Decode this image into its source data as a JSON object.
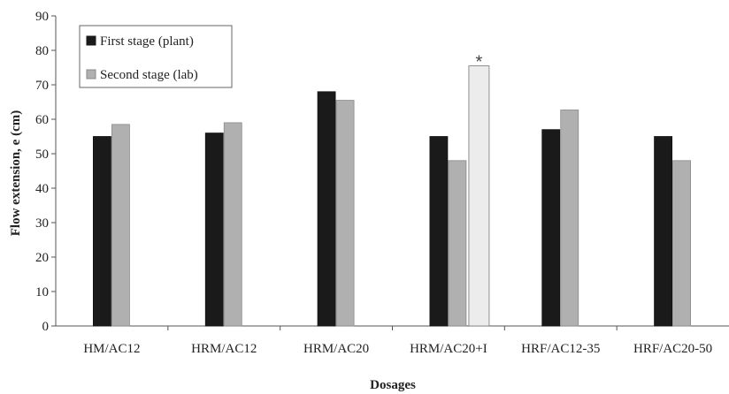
{
  "chart_data": {
    "type": "bar",
    "title": "",
    "xlabel": "Dosages",
    "ylabel": "Flow extension, e (cm)",
    "ylim": [
      0,
      90
    ],
    "ytick_step": 10,
    "grid": false,
    "legend_position": "top-left",
    "categories": [
      "HM/AC12",
      "HRM/AC12",
      "HRM/AC20",
      "HRM/AC20+I",
      "HRF/AC12-35",
      "HRF/AC20-50"
    ],
    "series": [
      {
        "name": "First stage (plant)",
        "color": "#1a1a1a",
        "values": [
          55,
          56,
          68,
          55,
          57,
          55
        ]
      },
      {
        "name": "Second stage (lab)",
        "color": "#b0b0b0",
        "values": [
          58.5,
          59,
          65.5,
          48,
          62.7,
          48
        ]
      }
    ],
    "extra_bars": [
      {
        "category": "HRM/AC20+I",
        "value": 75.5,
        "color": "#ececec",
        "annotation": "*"
      }
    ]
  }
}
